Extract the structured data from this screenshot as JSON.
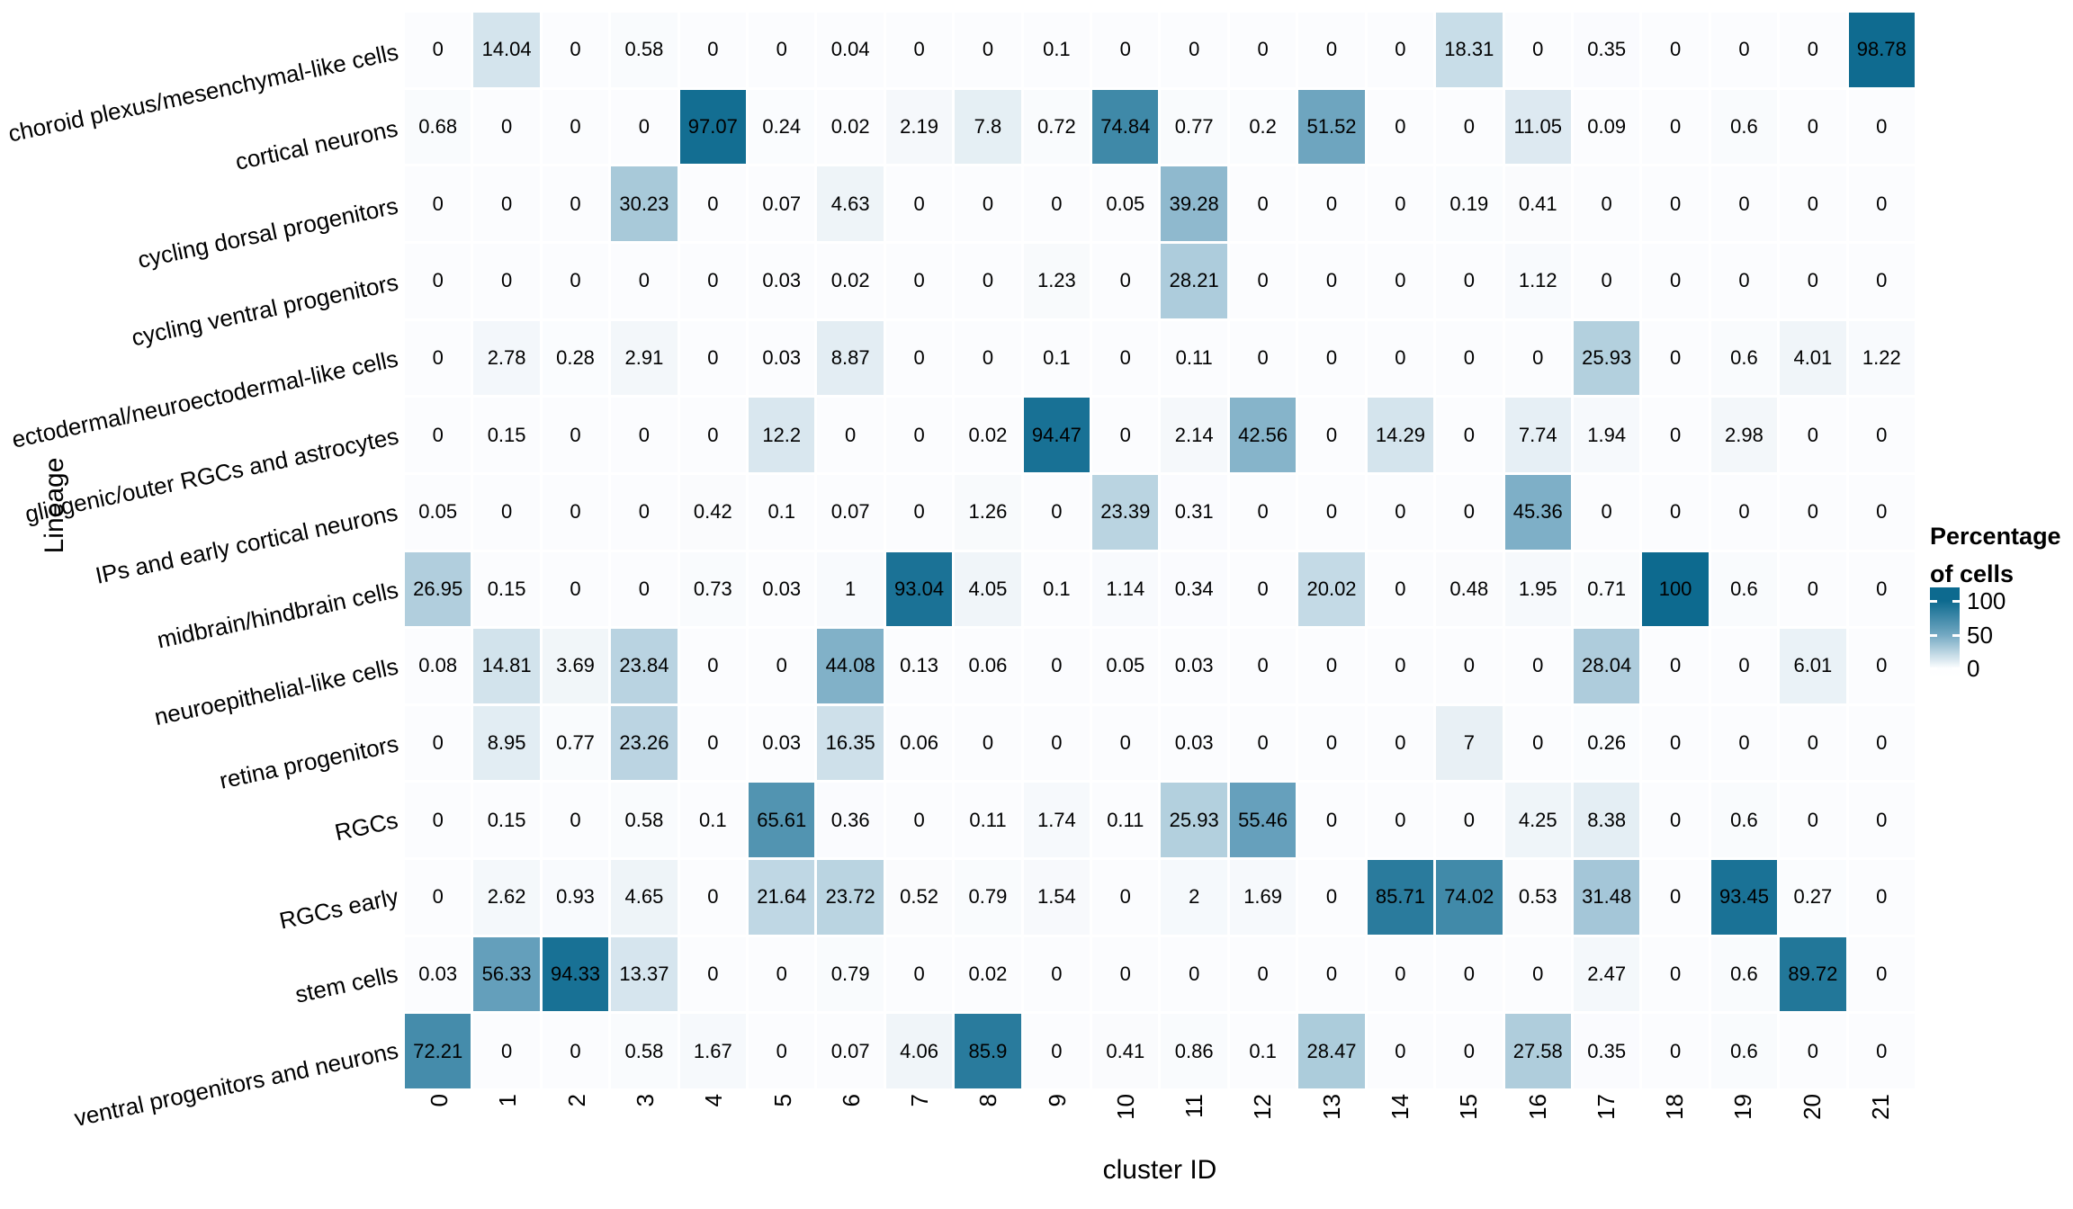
{
  "figure": {
    "x_axis_title": "cluster ID",
    "y_axis_title": "Lineage",
    "legend": {
      "title_line1": "Percentage",
      "title_line2": "of cells",
      "ticks": [
        "100",
        "50",
        "0"
      ],
      "tick_values": [
        100,
        50,
        0
      ]
    }
  },
  "chart_data": {
    "type": "heatmap",
    "title": "",
    "xlabel": "cluster ID",
    "ylabel": "Lineage",
    "legend_title": "Percentage of cells",
    "color_scale": {
      "min": 0,
      "max": 100,
      "low": "#fbfcfe",
      "mid": "#71a7c1",
      "high": "#0d6a8f"
    },
    "x_categories": [
      "0",
      "1",
      "2",
      "3",
      "4",
      "5",
      "6",
      "7",
      "8",
      "9",
      "10",
      "11",
      "12",
      "13",
      "14",
      "15",
      "16",
      "17",
      "18",
      "19",
      "20",
      "21"
    ],
    "rows": [
      {
        "label": "choroid plexus/mesenchymal-like cells",
        "values": [
          0,
          14.04,
          0,
          0.58,
          0,
          0,
          0.04,
          0,
          0,
          0.1,
          0,
          0,
          0,
          0,
          0,
          18.31,
          0,
          0.35,
          0,
          0,
          0,
          98.78
        ]
      },
      {
        "label": "cortical neurons",
        "values": [
          0.68,
          0,
          0,
          0,
          97.07,
          0.24,
          0.02,
          2.19,
          7.8,
          0.72,
          74.84,
          0.77,
          0.2,
          51.52,
          0,
          0,
          11.05,
          0.09,
          0,
          0.6,
          0,
          0
        ]
      },
      {
        "label": "cycling dorsal progenitors",
        "values": [
          0,
          0,
          0,
          30.23,
          0,
          0.07,
          4.63,
          0,
          0,
          0,
          0.05,
          39.28,
          0,
          0,
          0,
          0.19,
          0.41,
          0,
          0,
          0,
          0,
          0
        ]
      },
      {
        "label": "cycling ventral progenitors",
        "values": [
          0,
          0,
          0,
          0,
          0,
          0.03,
          0.02,
          0,
          0,
          1.23,
          0,
          28.21,
          0,
          0,
          0,
          0,
          1.12,
          0,
          0,
          0,
          0,
          0
        ]
      },
      {
        "label": "ectodermal/neuroectodermal-like cells",
        "values": [
          0,
          2.78,
          0.28,
          2.91,
          0,
          0.03,
          8.87,
          0,
          0,
          0.1,
          0,
          0.11,
          0,
          0,
          0,
          0,
          0,
          25.93,
          0,
          0.6,
          4.01,
          1.22
        ]
      },
      {
        "label": "gliogenic/outer RGCs and astrocytes",
        "values": [
          0,
          0.15,
          0,
          0,
          0,
          12.2,
          0,
          0,
          0.02,
          94.47,
          0,
          2.14,
          42.56,
          0,
          14.29,
          0,
          7.74,
          1.94,
          0,
          2.98,
          0,
          0
        ]
      },
      {
        "label": "IPs and early cortical neurons",
        "values": [
          0.05,
          0,
          0,
          0,
          0.42,
          0.1,
          0.07,
          0,
          1.26,
          0,
          23.39,
          0.31,
          0,
          0,
          0,
          0,
          45.36,
          0,
          0,
          0,
          0,
          0
        ]
      },
      {
        "label": "midbrain/hindbrain cells",
        "values": [
          26.95,
          0.15,
          0,
          0,
          0.73,
          0.03,
          1,
          93.04,
          4.05,
          0.1,
          1.14,
          0.34,
          0,
          20.02,
          0,
          0.48,
          1.95,
          0.71,
          100,
          0.6,
          0,
          0
        ]
      },
      {
        "label": "neuroepithelial-like cells",
        "values": [
          0.08,
          14.81,
          3.69,
          23.84,
          0,
          0,
          44.08,
          0.13,
          0.06,
          0,
          0.05,
          0.03,
          0,
          0,
          0,
          0,
          0,
          28.04,
          0,
          0,
          6.01,
          0
        ]
      },
      {
        "label": "retina progenitors",
        "values": [
          0,
          8.95,
          0.77,
          23.26,
          0,
          0.03,
          16.35,
          0.06,
          0,
          0,
          0,
          0.03,
          0,
          0,
          0,
          7,
          0,
          0.26,
          0,
          0,
          0,
          0
        ]
      },
      {
        "label": "RGCs",
        "values": [
          0,
          0.15,
          0,
          0.58,
          0.1,
          65.61,
          0.36,
          0,
          0.11,
          1.74,
          0.11,
          25.93,
          55.46,
          0,
          0,
          0,
          4.25,
          8.38,
          0,
          0.6,
          0,
          0
        ]
      },
      {
        "label": "RGCs early",
        "values": [
          0,
          2.62,
          0.93,
          4.65,
          0,
          21.64,
          23.72,
          0.52,
          0.79,
          1.54,
          0,
          2,
          1.69,
          0,
          85.71,
          74.02,
          0.53,
          31.48,
          0,
          93.45,
          0.27,
          0
        ]
      },
      {
        "label": "stem cells",
        "values": [
          0.03,
          56.33,
          94.33,
          13.37,
          0,
          0,
          0.79,
          0,
          0.02,
          0,
          0,
          0,
          0,
          0,
          0,
          0,
          0,
          2.47,
          0,
          0.6,
          89.72,
          0
        ]
      },
      {
        "label": "ventral progenitors and neurons",
        "values": [
          72.21,
          0,
          0,
          0.58,
          1.67,
          0,
          0.07,
          4.06,
          85.9,
          0,
          0.41,
          0.86,
          0.1,
          28.47,
          0,
          0,
          27.58,
          0.35,
          0,
          0.6,
          0,
          0
        ]
      }
    ]
  }
}
